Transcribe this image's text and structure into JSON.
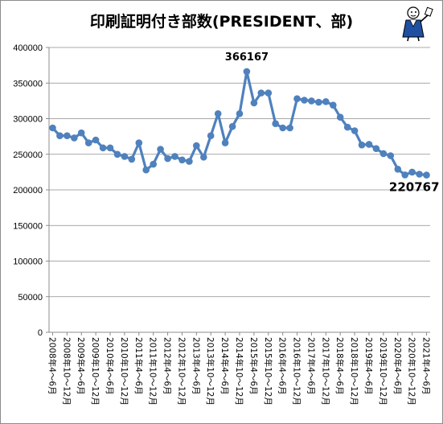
{
  "chart_data": {
    "type": "line",
    "title": "印刷証明付き部数(PRESIDENT、部)",
    "xlabel": "",
    "ylabel": "",
    "ylim": [
      0,
      400000
    ],
    "yticks": [
      0,
      50000,
      100000,
      150000,
      200000,
      250000,
      300000,
      350000,
      400000
    ],
    "y_tick_labels": [
      "0",
      "50000",
      "100000",
      "150000",
      "200000",
      "250000",
      "300000",
      "350000",
      "400000"
    ],
    "grid": true,
    "legend": "none",
    "series_color": "#4f81bd",
    "categories": [
      "2008年4～6月",
      "2008年7～9月",
      "2008年10～12月",
      "2009年1～3月",
      "2009年4～6月",
      "2009年7～9月",
      "2009年10～12月",
      "2010年1～3月",
      "2010年4～6月",
      "2010年7～9月",
      "2010年10～12月",
      "2011年1～3月",
      "2011年4～6月",
      "2011年7～9月",
      "2011年10～12月",
      "2012年1～3月",
      "2012年4～6月",
      "2012年7～9月",
      "2012年10～12月",
      "2013年1～3月",
      "2013年4～6月",
      "2013年7～9月",
      "2013年10～12月",
      "2014年1～3月",
      "2014年4～6月",
      "2014年7～9月",
      "2014年10～12月",
      "2015年1～3月",
      "2015年4～6月",
      "2015年7～9月",
      "2015年10～12月",
      "2016年1～3月",
      "2016年4～6月",
      "2016年7～9月",
      "2016年10～12月",
      "2017年1～3月",
      "2017年4～6月",
      "2017年7～9月",
      "2017年10～12月",
      "2018年1～3月",
      "2018年4～6月",
      "2018年7～9月",
      "2018年10～12月",
      "2019年1～3月",
      "2019年4～6月",
      "2019年7～9月",
      "2019年10～12月",
      "2020年1～3月",
      "2020年4～6月",
      "2020年7～9月",
      "2020年10～12月",
      "2021年1～3月",
      "2021年4～6月"
    ],
    "x_tick_labels": [
      "2008年4～6月",
      "2008年10～12月",
      "2009年4～6月",
      "2009年10～12月",
      "2010年4～6月",
      "2010年10～12月",
      "2011年4～6月",
      "2011年10～12月",
      "2012年4～6月",
      "2012年10～12月",
      "2013年4～6月",
      "2013年10～12月",
      "2014年4～6月",
      "2014年10～12月",
      "2015年4～6月",
      "2015年10～12月",
      "2016年4～6月",
      "2016年10～12月",
      "2017年4～6月",
      "2017年10～12月",
      "2018年4～6月",
      "2018年10～12月",
      "2019年4～6月",
      "2019年10～12月",
      "2020年4～6月",
      "2020年10～12月",
      "2021年4～6月"
    ],
    "values": [
      287000,
      276000,
      276000,
      273000,
      280000,
      266000,
      270000,
      259000,
      259000,
      250000,
      247000,
      243000,
      266000,
      228000,
      236000,
      257000,
      244000,
      247000,
      242000,
      240000,
      262000,
      246000,
      276000,
      307000,
      266000,
      289000,
      307000,
      366167,
      322000,
      336000,
      336000,
      293000,
      287000,
      287000,
      328000,
      326000,
      325000,
      323000,
      324000,
      319000,
      302000,
      288000,
      283000,
      263000,
      264000,
      258000,
      251000,
      248000,
      229000,
      221000,
      225000,
      222000,
      220767
    ],
    "annotations": [
      {
        "text": "366167",
        "category": "2015年1～3月",
        "value": 366167
      },
      {
        "text": "220767",
        "category": "2021年4～6月",
        "value": 220767
      }
    ]
  }
}
